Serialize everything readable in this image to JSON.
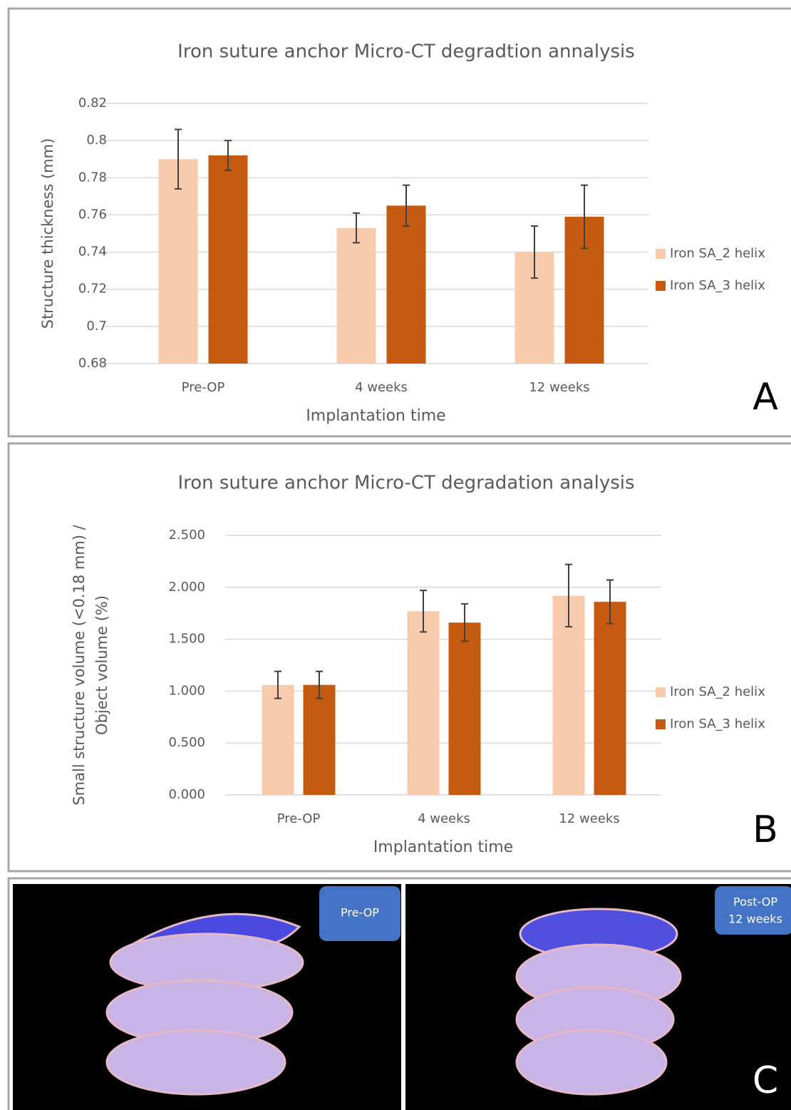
{
  "chart_data": [
    {
      "type": "bar",
      "title": "Iron suture anchor Micro-CT degradtion annalysis",
      "x_label": "Implantation time",
      "y_label": [
        "Structure thickness (mm)"
      ],
      "categories": [
        "Pre-OP",
        "4 weeks",
        "12 weeks"
      ],
      "series": [
        {
          "name": "Iron SA_2 helix",
          "color": "#f8cbad",
          "values": [
            0.79,
            0.753,
            0.74
          ],
          "errors": [
            0.016,
            0.008,
            0.014
          ]
        },
        {
          "name": "Iron SA_3 helix",
          "color": "#c55a11",
          "values": [
            0.792,
            0.765,
            0.759
          ],
          "errors": [
            0.008,
            0.011,
            0.017
          ]
        }
      ],
      "ylim": [
        0.68,
        0.82
      ],
      "yticks": [
        0.68,
        0.7,
        0.72,
        0.74,
        0.76,
        0.78,
        0.8,
        0.82
      ],
      "grid": true,
      "legend": "right"
    },
    {
      "type": "bar",
      "title": "Iron suture anchor Micro-CT degradation analysis",
      "x_label": "Implantation time",
      "y_label": [
        "Small structure volume (<0.18 mm) /",
        "Object volume (%)"
      ],
      "categories": [
        "Pre-OP",
        "4 weeks",
        "12 weeks"
      ],
      "series": [
        {
          "name": "Iron SA_2 helix",
          "color": "#f8cbad",
          "values": [
            1.06,
            1.77,
            1.92
          ],
          "errors": [
            0.13,
            0.2,
            0.3
          ]
        },
        {
          "name": "Iron SA_3 helix",
          "color": "#c55a11",
          "values": [
            1.06,
            1.66,
            1.86
          ],
          "errors": [
            0.13,
            0.18,
            0.21
          ]
        }
      ],
      "ylim": [
        0,
        2.5
      ],
      "yticks": [
        {
          "value": 0,
          "label": "0.000"
        },
        {
          "value": 0.5,
          "label": "0.500"
        },
        {
          "value": 1,
          "label": "1.000"
        },
        {
          "value": 1.5,
          "label": "1.500"
        },
        {
          "value": 2,
          "label": "2.000"
        },
        {
          "value": 2.5,
          "label": "2.500"
        }
      ],
      "grid": true,
      "legend": "right"
    }
  ],
  "panel_labels": [
    "A",
    "B",
    "C"
  ],
  "images": [
    {
      "label": [
        "Pre-OP"
      ]
    },
    {
      "label": [
        "Post-OP",
        "12 weeks"
      ]
    }
  ]
}
